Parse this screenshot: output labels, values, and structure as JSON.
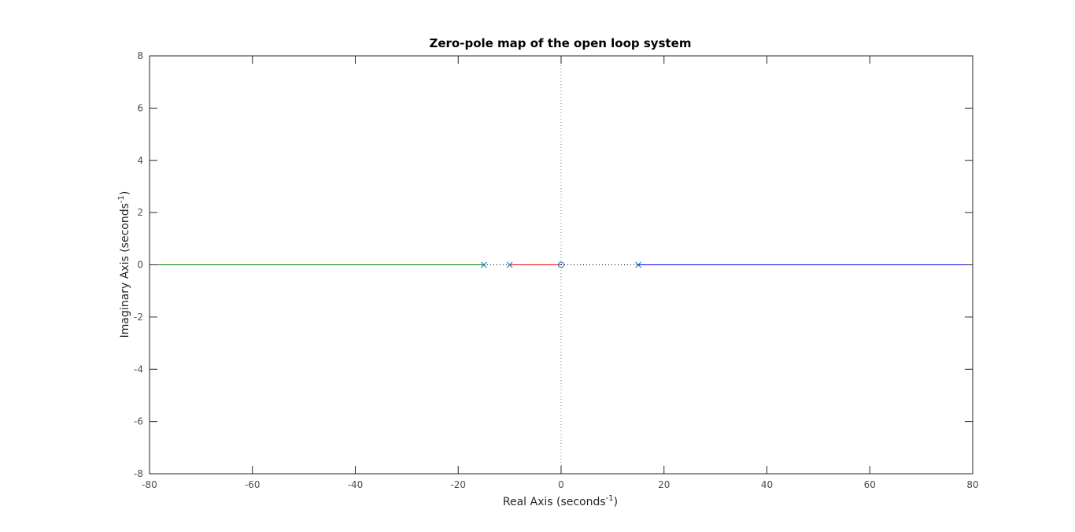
{
  "chart_data": {
    "type": "scatter",
    "title": "Zero-pole map of the open loop system",
    "xlabel": {
      "base": "Real Axis (seconds",
      "sup": "-1",
      "tail": ")"
    },
    "ylabel": {
      "base": "Imaginary Axis (seconds",
      "sup": "-1",
      "tail": ")"
    },
    "xlim": [
      -80,
      80
    ],
    "ylim": [
      -8,
      8
    ],
    "xticks": [
      -80,
      -60,
      -40,
      -20,
      0,
      20,
      40,
      60,
      80
    ],
    "yticks": [
      -8,
      -6,
      -4,
      -2,
      0,
      2,
      4,
      6,
      8
    ],
    "xtick_labels": [
      "-80",
      "-60",
      "-40",
      "-20",
      "0",
      "20",
      "40",
      "60",
      "80"
    ],
    "ytick_labels": [
      "-8",
      "-6",
      "-4",
      "-2",
      "0",
      "2",
      "4",
      "6",
      "8"
    ],
    "grid": false,
    "reference_lines": [
      {
        "orientation": "vertical",
        "value": 0,
        "style": "dotted",
        "color": "#7f7f7f"
      }
    ],
    "poles": [
      {
        "x": -15,
        "y": 0
      },
      {
        "x": -10,
        "y": 0
      },
      {
        "x": 15,
        "y": 0
      }
    ],
    "zeros": [
      {
        "x": 0,
        "y": 0
      }
    ],
    "marker_color": "#0072bd",
    "series": [
      {
        "points": [
          [
            -80,
            0
          ],
          [
            -15,
            0
          ]
        ],
        "color": "#007f00",
        "style": "solid"
      },
      {
        "points": [
          [
            -15,
            0
          ],
          [
            -10,
            0
          ]
        ],
        "color": "#000000",
        "style": "dotted"
      },
      {
        "points": [
          [
            -10,
            0
          ],
          [
            0,
            0
          ]
        ],
        "color": "#ff0000",
        "style": "solid"
      },
      {
        "points": [
          [
            0,
            0
          ],
          [
            15,
            0
          ]
        ],
        "color": "#000000",
        "style": "dotted"
      },
      {
        "points": [
          [
            15,
            0
          ],
          [
            80,
            0
          ]
        ],
        "color": "#0000ff",
        "style": "solid"
      }
    ],
    "colors": {
      "axes": "#262626",
      "ticks": "#4d4d4d",
      "background": "#ffffff"
    }
  }
}
